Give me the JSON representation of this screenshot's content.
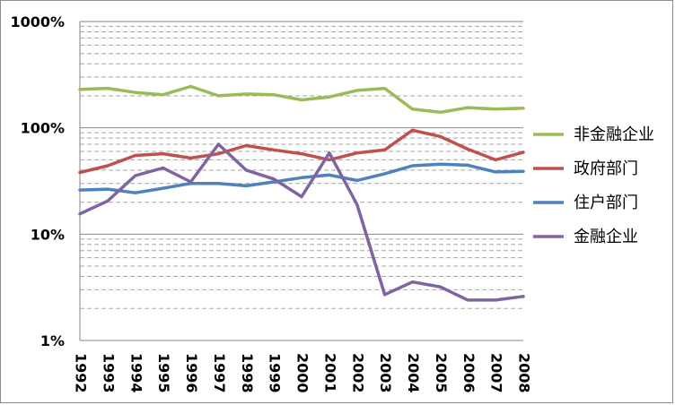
{
  "chart_data": {
    "type": "line",
    "title": "",
    "xlabel": "",
    "ylabel": "",
    "y_scale": "log",
    "ylim": [
      1,
      1000
    ],
    "y_ticks": [
      "1%",
      "10%",
      "100%",
      "1000%"
    ],
    "grid": "horizontal-major-solid-minor-dashed",
    "legend_position": "right",
    "categories": [
      "1992",
      "1993",
      "1994",
      "1995",
      "1996",
      "1997",
      "1998",
      "1999",
      "2000",
      "2001",
      "2002",
      "2003",
      "2004",
      "2005",
      "2006",
      "2007",
      "2008"
    ],
    "series": [
      {
        "name": "非金融企业",
        "color": "#9bbb59",
        "values": [
          230,
          235,
          215,
          205,
          245,
          200,
          208,
          205,
          183,
          195,
          225,
          235,
          150,
          140,
          155,
          150,
          153
        ]
      },
      {
        "name": "政府部门",
        "color": "#c0504d",
        "values": [
          38,
          44,
          55,
          57,
          52,
          57,
          68,
          62,
          57,
          50,
          58,
          62,
          95,
          83,
          63,
          50,
          59
        ]
      },
      {
        "name": "住户部门",
        "color": "#4f81bd",
        "values": [
          26,
          26.5,
          24.5,
          27,
          30,
          30,
          28.5,
          31,
          34,
          36,
          32,
          37,
          44,
          45.5,
          44.5,
          38.5,
          39
        ]
      },
      {
        "name": "金融企业",
        "color": "#8064a2",
        "values": [
          15.5,
          20.5,
          35.5,
          42,
          31,
          70,
          40,
          33,
          22.5,
          58,
          19,
          2.7,
          3.55,
          3.2,
          2.4,
          2.4,
          2.6
        ]
      }
    ]
  }
}
